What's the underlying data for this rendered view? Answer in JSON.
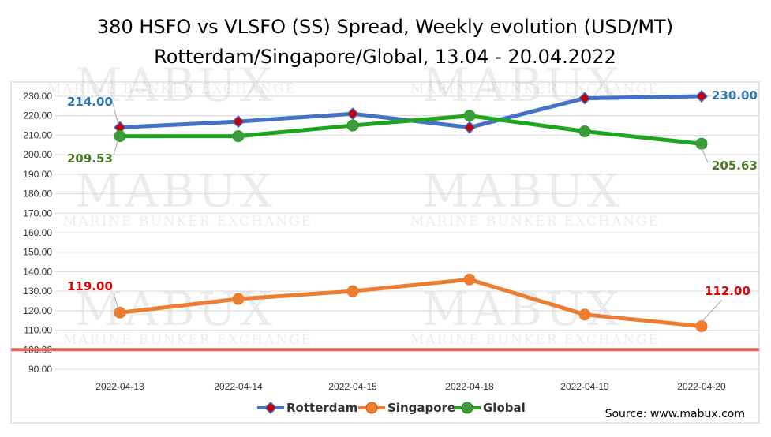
{
  "chart_data": {
    "type": "line",
    "title_line1": "380 HSFO vs VLSFO (SS) Spread, Weekly evolution (USD/MT)",
    "title_line2": "Rotterdam/Singapore/Global, 13.04 - 20.04.2022",
    "categories": [
      "2022-04-13",
      "2022-04-14",
      "2022-04-15",
      "2022-04-18",
      "2022-04-19",
      "2022-04-20"
    ],
    "ylim": [
      90,
      230
    ],
    "ystep": 10,
    "y_tick_decimals": 2,
    "grid": "horizontal",
    "legend_position": "bottom",
    "reference_line": {
      "value": 100,
      "color": "#e06666"
    },
    "series": [
      {
        "name": "Rotterdam",
        "values": [
          214,
          217,
          221,
          214,
          229,
          230
        ],
        "color": "#4472c4",
        "marker": "diamond",
        "marker_fill": "#c0000a"
      },
      {
        "name": "Singapore",
        "values": [
          119,
          126,
          130,
          136,
          118,
          112
        ],
        "color": "#ed7d31",
        "marker": "circle",
        "marker_fill": "#ed7d31"
      },
      {
        "name": "Global",
        "values": [
          209.53,
          209.53,
          215,
          220,
          212,
          205.63
        ],
        "color": "#1ea51e",
        "marker": "circle",
        "marker_fill": "#3f9a3f"
      }
    ],
    "data_labels": [
      {
        "series": "Rotterdam",
        "index": 0,
        "text": "214.00",
        "color": "#2e75b6"
      },
      {
        "series": "Rotterdam",
        "index": 5,
        "text": "230.00",
        "color": "#2e75b6"
      },
      {
        "series": "Global",
        "index": 0,
        "text": "209.53",
        "color": "#4a7c26"
      },
      {
        "series": "Global",
        "index": 5,
        "text": "205.63",
        "color": "#4a7c26"
      },
      {
        "series": "Singapore",
        "index": 0,
        "text": "119.00",
        "color": "#e00000"
      },
      {
        "series": "Singapore",
        "index": 5,
        "text": "112.00",
        "color": "#e00000"
      }
    ],
    "source": "Source: www.mabux.com"
  },
  "watermark": {
    "big": "MABUX",
    "small": "MARINE BUNKER EXCHANGE"
  }
}
